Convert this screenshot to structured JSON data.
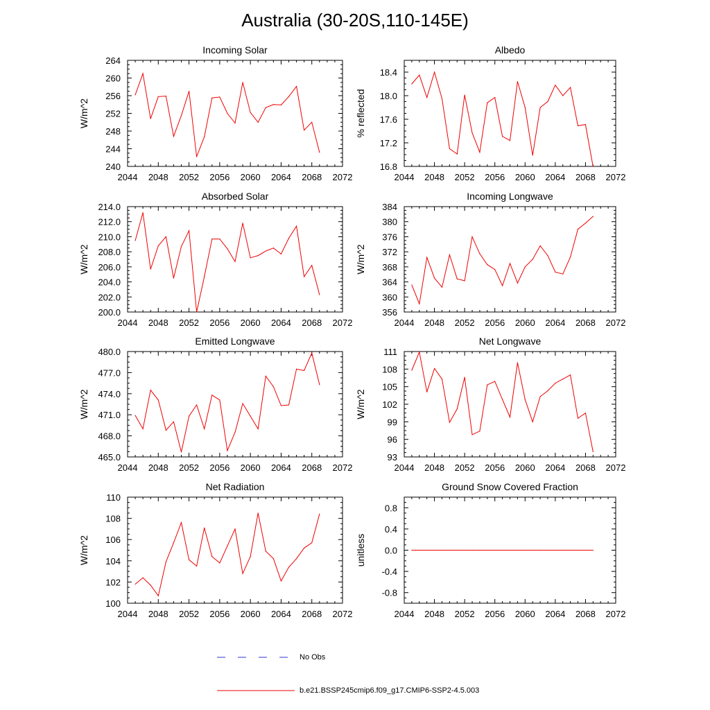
{
  "figure": {
    "title": "Australia (30-20S,110-145E)",
    "legend": {
      "obs_label": "No Obs",
      "model_label": "b.e21.BSSP245cmip6.f09_g17.CMIP6-SSP2-4.5.003",
      "obs_color": "#3333cc",
      "model_color": "#ee0000"
    }
  },
  "chart_data": [
    {
      "type": "line",
      "title": "Incoming Solar",
      "ylabel": "W/m^2",
      "xlim": [
        2044,
        2072
      ],
      "ylim": [
        240,
        264
      ],
      "xticks": [
        2044,
        2048,
        2052,
        2056,
        2060,
        2064,
        2068,
        2072
      ],
      "yticks": [
        240,
        244,
        248,
        252,
        256,
        260,
        264
      ],
      "ytick_labels": [
        "240",
        "244",
        "248",
        "252",
        "256",
        "260",
        "264"
      ],
      "x": [
        2045,
        2046,
        2047,
        2048,
        2049,
        2050,
        2051,
        2052,
        2053,
        2054,
        2055,
        2056,
        2057,
        2058,
        2059,
        2060,
        2061,
        2062,
        2063,
        2064,
        2065,
        2066,
        2067,
        2068,
        2069
      ],
      "values": [
        256.2,
        261.0,
        250.8,
        255.8,
        255.9,
        246.8,
        251.5,
        257.0,
        242.2,
        246.7,
        255.5,
        255.7,
        252.0,
        249.8,
        259.0,
        252.2,
        250.0,
        253.3,
        254.0,
        253.9,
        255.8,
        258.1,
        248.2,
        250.0,
        243.2
      ]
    },
    {
      "type": "line",
      "title": "Albedo",
      "ylabel": "% reflected",
      "xlim": [
        2044,
        2072
      ],
      "ylim": [
        16.8,
        18.6
      ],
      "xticks": [
        2044,
        2048,
        2052,
        2056,
        2060,
        2064,
        2068,
        2072
      ],
      "yticks": [
        16.8,
        17.2,
        17.6,
        18.0,
        18.4
      ],
      "ytick_labels": [
        "16.8",
        "17.2",
        "17.6",
        "18.0",
        "18.4"
      ],
      "x": [
        2045,
        2046,
        2047,
        2048,
        2049,
        2050,
        2051,
        2052,
        2053,
        2054,
        2055,
        2056,
        2057,
        2058,
        2059,
        2060,
        2061,
        2062,
        2063,
        2064,
        2065,
        2066,
        2067,
        2068,
        2069
      ],
      "values": [
        18.2,
        18.35,
        17.97,
        18.4,
        17.95,
        17.1,
        17.01,
        18.01,
        17.37,
        17.04,
        17.88,
        17.97,
        17.31,
        17.24,
        18.24,
        17.8,
        16.99,
        17.8,
        17.9,
        18.18,
        18.0,
        18.14,
        17.49,
        17.51,
        16.8
      ]
    },
    {
      "type": "line",
      "title": "Absorbed Solar",
      "ylabel": "W/m^2",
      "xlim": [
        2044,
        2072
      ],
      "ylim": [
        200,
        214
      ],
      "xticks": [
        2044,
        2048,
        2052,
        2056,
        2060,
        2064,
        2068,
        2072
      ],
      "yticks": [
        200,
        202,
        204,
        206,
        208,
        210,
        212,
        214
      ],
      "ytick_labels": [
        "200.0",
        "202.0",
        "204.0",
        "206.0",
        "208.0",
        "210.0",
        "212.0",
        "214.0"
      ],
      "x": [
        2045,
        2046,
        2047,
        2048,
        2049,
        2050,
        2051,
        2052,
        2053,
        2054,
        2055,
        2056,
        2057,
        2058,
        2059,
        2060,
        2061,
        2062,
        2063,
        2064,
        2065,
        2066,
        2067,
        2068,
        2069
      ],
      "values": [
        209.5,
        213.2,
        205.7,
        208.8,
        210.0,
        204.5,
        208.7,
        210.8,
        200.0,
        204.7,
        209.7,
        209.7,
        208.4,
        206.7,
        211.8,
        207.2,
        207.5,
        208.1,
        208.5,
        207.7,
        209.8,
        211.4,
        204.7,
        206.2,
        202.3
      ]
    },
    {
      "type": "line",
      "title": "Incoming Longwave",
      "ylabel": "W/m^2",
      "xlim": [
        2044,
        2072
      ],
      "ylim": [
        356,
        384
      ],
      "xticks": [
        2044,
        2048,
        2052,
        2056,
        2060,
        2064,
        2068,
        2072
      ],
      "yticks": [
        356,
        360,
        364,
        368,
        372,
        376,
        380,
        384
      ],
      "ytick_labels": [
        "356",
        "360",
        "364",
        "368",
        "372",
        "376",
        "380",
        "384"
      ],
      "x": [
        2045,
        2046,
        2047,
        2048,
        2049,
        2050,
        2051,
        2052,
        2053,
        2054,
        2055,
        2056,
        2057,
        2058,
        2059,
        2060,
        2061,
        2062,
        2063,
        2064,
        2065,
        2066,
        2067,
        2068,
        2069
      ],
      "values": [
        363.2,
        358.2,
        370.5,
        365.0,
        362.6,
        371.2,
        364.8,
        364.3,
        376.0,
        371.5,
        368.6,
        367.3,
        363.0,
        368.9,
        363.7,
        368.0,
        370.0,
        373.6,
        371.0,
        366.6,
        366.1,
        370.6,
        378.0,
        379.6,
        381.4
      ]
    },
    {
      "type": "line",
      "title": "Emitted Longwave",
      "ylabel": "W/m^2",
      "xlim": [
        2044,
        2072
      ],
      "ylim": [
        465,
        480
      ],
      "xticks": [
        2044,
        2048,
        2052,
        2056,
        2060,
        2064,
        2068,
        2072
      ],
      "yticks": [
        465,
        468,
        471,
        474,
        477,
        480
      ],
      "ytick_labels": [
        "465.0",
        "468.0",
        "471.0",
        "474.0",
        "477.0",
        "480.0"
      ],
      "x": [
        2045,
        2046,
        2047,
        2048,
        2049,
        2050,
        2051,
        2052,
        2053,
        2054,
        2055,
        2056,
        2057,
        2058,
        2059,
        2060,
        2061,
        2062,
        2063,
        2064,
        2065,
        2066,
        2067,
        2068,
        2069
      ],
      "values": [
        470.9,
        469.0,
        474.5,
        473.1,
        468.8,
        470.0,
        465.7,
        470.8,
        472.4,
        469.0,
        473.8,
        473.1,
        465.9,
        468.5,
        472.6,
        470.8,
        469.0,
        476.5,
        475.0,
        472.3,
        472.4,
        477.5,
        477.3,
        479.8,
        475.3
      ]
    },
    {
      "type": "line",
      "title": "Net Longwave",
      "ylabel": "W/m^2",
      "xlim": [
        2044,
        2072
      ],
      "ylim": [
        93,
        111
      ],
      "xticks": [
        2044,
        2048,
        2052,
        2056,
        2060,
        2064,
        2068,
        2072
      ],
      "yticks": [
        93,
        96,
        99,
        102,
        105,
        108,
        111
      ],
      "ytick_labels": [
        "93",
        "96",
        "99",
        "102",
        "105",
        "108",
        "111"
      ],
      "x": [
        2045,
        2046,
        2047,
        2048,
        2049,
        2050,
        2051,
        2052,
        2053,
        2054,
        2055,
        2056,
        2057,
        2058,
        2059,
        2060,
        2061,
        2062,
        2063,
        2064,
        2065,
        2066,
        2067,
        2068,
        2069
      ],
      "values": [
        107.8,
        110.9,
        104.1,
        108.1,
        106.3,
        98.9,
        101.2,
        106.6,
        96.8,
        97.4,
        105.3,
        105.9,
        102.8,
        99.8,
        109.1,
        102.8,
        99.0,
        103.3,
        104.3,
        105.6,
        106.3,
        107.0,
        99.6,
        100.5,
        93.9
      ]
    },
    {
      "type": "line",
      "title": "Net Radiation",
      "ylabel": "W/m^2",
      "xlim": [
        2044,
        2072
      ],
      "ylim": [
        100,
        110
      ],
      "xticks": [
        2044,
        2048,
        2052,
        2056,
        2060,
        2064,
        2068,
        2072
      ],
      "yticks": [
        100,
        102,
        104,
        106,
        108,
        110
      ],
      "ytick_labels": [
        "100",
        "102",
        "104",
        "106",
        "108",
        "110"
      ],
      "x": [
        2045,
        2046,
        2047,
        2048,
        2049,
        2050,
        2051,
        2052,
        2053,
        2054,
        2055,
        2056,
        2057,
        2058,
        2059,
        2060,
        2061,
        2062,
        2063,
        2064,
        2065,
        2066,
        2067,
        2068,
        2069
      ],
      "values": [
        101.8,
        102.4,
        101.7,
        100.7,
        103.9,
        105.7,
        107.6,
        104.1,
        103.5,
        107.1,
        104.4,
        103.8,
        105.4,
        107.0,
        102.8,
        104.4,
        108.5,
        104.9,
        104.2,
        102.1,
        103.4,
        104.2,
        105.2,
        105.7,
        108.4
      ]
    },
    {
      "type": "line",
      "title": "Ground Snow Covered Fraction",
      "ylabel": "unitless",
      "xlim": [
        2044,
        2072
      ],
      "ylim": [
        -1.0,
        1.0
      ],
      "xticks": [
        2044,
        2048,
        2052,
        2056,
        2060,
        2064,
        2068,
        2072
      ],
      "yticks": [
        -0.8,
        -0.4,
        0.0,
        0.4,
        0.8
      ],
      "ytick_labels": [
        "-0.8",
        "-0.4",
        "0.0",
        "0.4",
        "0.8"
      ],
      "x": [
        2045,
        2046,
        2047,
        2048,
        2049,
        2050,
        2051,
        2052,
        2053,
        2054,
        2055,
        2056,
        2057,
        2058,
        2059,
        2060,
        2061,
        2062,
        2063,
        2064,
        2065,
        2066,
        2067,
        2068,
        2069
      ],
      "values": [
        0,
        0,
        0,
        0,
        0,
        0,
        0,
        0,
        0,
        0,
        0,
        0,
        0,
        0,
        0,
        0,
        0,
        0,
        0,
        0,
        0,
        0,
        0,
        0,
        0
      ]
    }
  ]
}
